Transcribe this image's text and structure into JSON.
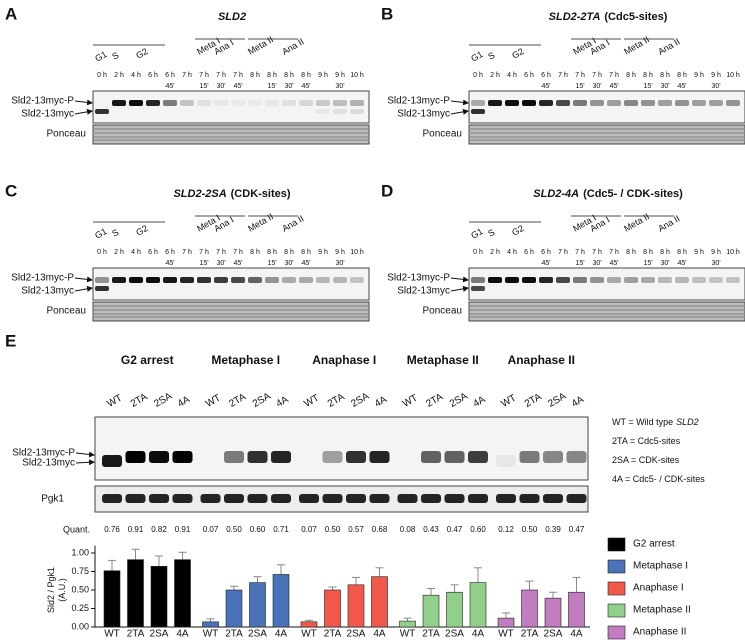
{
  "lanes": [
    {
      "h": "0 h"
    },
    {
      "h": "2 h"
    },
    {
      "h": "4 h"
    },
    {
      "h": "6 h"
    },
    {
      "h": "6 h",
      "m": "45'"
    },
    {
      "h": "7 h"
    },
    {
      "h": "7 h",
      "m": "15'"
    },
    {
      "h": "7 h",
      "m": "30'"
    },
    {
      "h": "7 h",
      "m": "45'"
    },
    {
      "h": "8 h"
    },
    {
      "h": "8 h",
      "m": "15'"
    },
    {
      "h": "8 h",
      "m": "30'"
    },
    {
      "h": "8 h",
      "m": "45'"
    },
    {
      "h": "9 h"
    },
    {
      "h": "9 h",
      "m": "30'"
    },
    {
      "h": "10 h"
    }
  ],
  "stages": [
    "G1",
    "S",
    "G2",
    "Meta I",
    "Ana I",
    "Meta II",
    "Ana II"
  ],
  "blot_labels": [
    "Sld2-13myc-P",
    "Sld2-13myc",
    "Ponceau"
  ],
  "panels": [
    {
      "letter": "A",
      "title": [
        "SLD2"
      ]
    },
    {
      "letter": "B",
      "title": [
        "SLD2-2TA",
        "(Cdc5-sites)"
      ]
    },
    {
      "letter": "C",
      "title": [
        "SLD2-2SA",
        "(CDK-sites)"
      ]
    },
    {
      "letter": "D",
      "title": [
        "SLD2-4A",
        "(Cdc5- / CDK-sites)"
      ]
    }
  ],
  "panel_e": {
    "letter": "E",
    "groups": [
      {
        "name": "G2 arrest",
        "color": "#111111"
      },
      {
        "name": "Metaphase I",
        "color": "#33449a"
      },
      {
        "name": "Anaphase I",
        "color": "#c3262e"
      },
      {
        "name": "Metaphase II",
        "color": "#16803f"
      },
      {
        "name": "Anaphase II",
        "color": "#7b3a9c"
      }
    ],
    "lanes": [
      "WT",
      "2TA",
      "2SA",
      "4A"
    ],
    "notes": [
      [
        "WT = Wild type",
        "SLD2"
      ],
      [
        "2TA = Cdc5-sites"
      ],
      [
        "2SA = CDK-sites"
      ],
      [
        "4A = Cdc5- / CDK-sites"
      ]
    ],
    "blot_labels": [
      "Sld2-13myc-P",
      "Sld2-13myc",
      "Pgk1"
    ],
    "quant_label": "Quant.",
    "quant": [
      [
        "0.76",
        "0.91",
        "0.82",
        "0.91"
      ],
      [
        "0.07",
        "0.50",
        "0.60",
        "0.71"
      ],
      [
        "0.07",
        "0.50",
        "0.57",
        "0.68"
      ],
      [
        "0.08",
        "0.43",
        "0.47",
        "0.60"
      ],
      [
        "0.12",
        "0.50",
        "0.39",
        "0.47"
      ]
    ]
  },
  "chart_data": {
    "type": "bar",
    "ylabel": [
      "Sld2 / Pgk1",
      "(A.U.)"
    ],
    "categories": [
      "WT",
      "2TA",
      "2SA",
      "4A"
    ],
    "series": [
      {
        "name": "G2 arrest",
        "color": "#000000",
        "values": [
          0.76,
          0.91,
          0.82,
          0.91
        ],
        "errors": [
          0.14,
          0.14,
          0.14,
          0.1
        ]
      },
      {
        "name": "Metaphase I",
        "color": "#4a72b8",
        "values": [
          0.07,
          0.5,
          0.6,
          0.71
        ],
        "errors": [
          0.04,
          0.05,
          0.08,
          0.13
        ]
      },
      {
        "name": "Anaphase I",
        "color": "#f0594a",
        "values": [
          0.07,
          0.5,
          0.57,
          0.68
        ],
        "errors": [
          0.02,
          0.04,
          0.1,
          0.12
        ]
      },
      {
        "name": "Metaphase II",
        "color": "#90d08a",
        "values": [
          0.08,
          0.43,
          0.47,
          0.6
        ],
        "errors": [
          0.04,
          0.09,
          0.1,
          0.2
        ]
      },
      {
        "name": "Anaphase II",
        "color": "#c27cc0",
        "values": [
          0.12,
          0.5,
          0.39,
          0.47
        ],
        "errors": [
          0.07,
          0.12,
          0.08,
          0.2
        ]
      }
    ],
    "ylim": [
      0,
      1.1
    ],
    "yticks": [
      {
        "value": 0,
        "label": "0.00"
      },
      {
        "value": 0.25,
        "label": "0.25"
      },
      {
        "value": 0.5,
        "label": "0.50"
      },
      {
        "value": 0.75,
        "label": "0.75"
      },
      {
        "value": 1,
        "label": "1.00"
      }
    ]
  }
}
